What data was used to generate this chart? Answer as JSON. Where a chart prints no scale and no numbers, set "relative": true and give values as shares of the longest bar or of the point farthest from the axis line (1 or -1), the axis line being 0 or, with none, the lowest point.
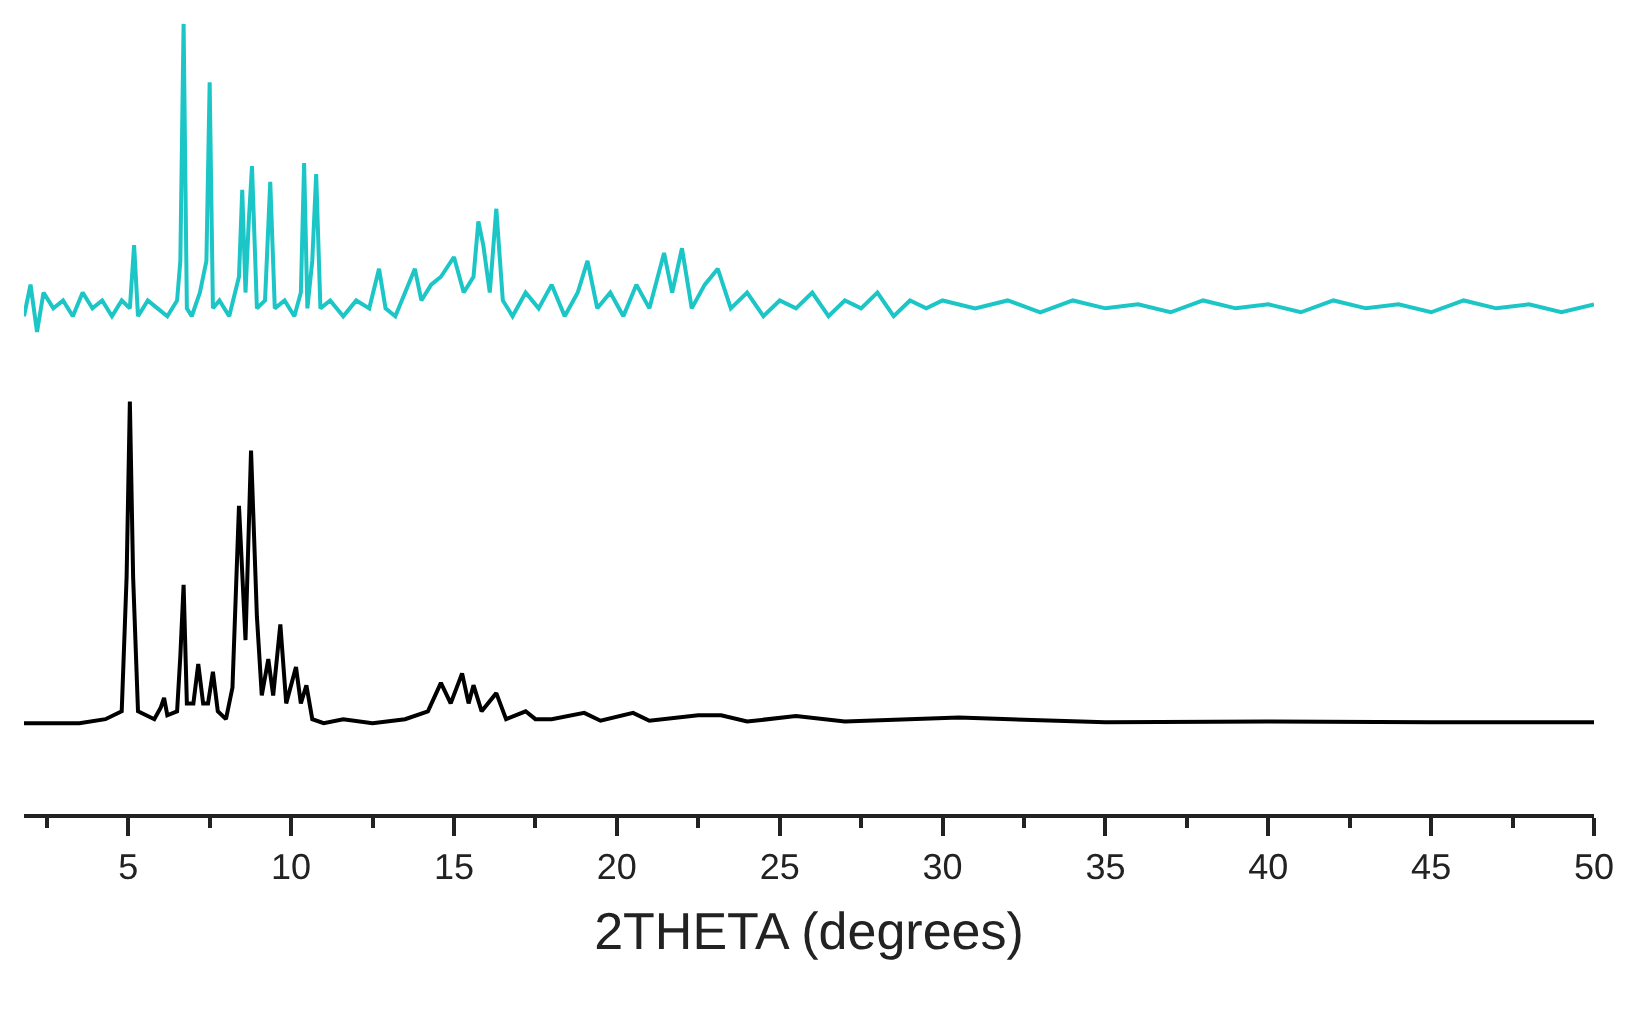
{
  "chart_data": {
    "type": "line",
    "relative": true,
    "xlabel": "2THETA (degrees)",
    "xlim": [
      1.8,
      50
    ],
    "xticks": [
      {
        "value": 2.5,
        "label": null
      },
      5,
      {
        "value": 7.5,
        "label": null
      },
      10,
      {
        "value": 12.5,
        "label": null
      },
      15,
      {
        "value": 17.5,
        "label": null
      },
      20,
      {
        "value": 22.5,
        "label": null
      },
      25,
      {
        "value": 27.5,
        "label": null
      },
      30,
      {
        "value": 32.5,
        "label": null
      },
      35,
      {
        "value": 37.5,
        "label": null
      },
      40,
      {
        "value": 42.5,
        "label": null
      },
      45,
      {
        "value": 47.5,
        "label": null
      },
      50
    ],
    "marker": "none",
    "line_style": "solid",
    "tick_labels": "x",
    "series": [
      {
        "color": "#1cc6c6",
        "x": [
          1.8,
          2.0,
          2.2,
          2.4,
          2.7,
          3.0,
          3.3,
          3.6,
          3.9,
          4.2,
          4.5,
          4.8,
          5.05,
          5.18,
          5.3,
          5.6,
          5.9,
          6.2,
          6.5,
          6.6,
          6.7,
          6.8,
          6.95,
          7.2,
          7.4,
          7.5,
          7.6,
          7.8,
          8.1,
          8.4,
          8.5,
          8.6,
          8.7,
          8.8,
          8.95,
          9.2,
          9.36,
          9.5,
          9.8,
          10.1,
          10.3,
          10.4,
          10.5,
          10.65,
          10.77,
          10.9,
          11.2,
          11.6,
          12.0,
          12.4,
          12.7,
          12.9,
          13.2,
          13.5,
          13.8,
          14.0,
          14.3,
          14.6,
          15.0,
          15.3,
          15.6,
          15.75,
          15.9,
          16.1,
          16.3,
          16.5,
          16.8,
          17.2,
          17.6,
          18.0,
          18.4,
          18.8,
          19.1,
          19.4,
          19.8,
          20.2,
          20.6,
          21.0,
          21.45,
          21.7,
          22.0,
          22.3,
          22.7,
          23.1,
          23.5,
          24.0,
          24.5,
          25.0,
          25.5,
          26.0,
          26.5,
          27.0,
          27.5,
          28.0,
          28.5,
          29.0,
          29.5,
          30.0,
          31.0,
          32.0,
          33.0,
          34.0,
          35.0,
          36.0,
          37.0,
          38.0,
          39.0,
          40.0,
          41.0,
          42.0,
          43.0,
          44.0,
          45.0,
          46.0,
          47.0,
          48.0,
          49.0,
          50.0
        ],
        "values": [
          0.63,
          0.67,
          0.61,
          0.66,
          0.64,
          0.65,
          0.63,
          0.66,
          0.64,
          0.65,
          0.63,
          0.65,
          0.64,
          0.72,
          0.63,
          0.65,
          0.64,
          0.63,
          0.65,
          0.7,
          1.0,
          0.64,
          0.63,
          0.66,
          0.7,
          0.926,
          0.64,
          0.65,
          0.63,
          0.68,
          0.79,
          0.66,
          0.75,
          0.82,
          0.64,
          0.65,
          0.8,
          0.64,
          0.65,
          0.63,
          0.66,
          0.824,
          0.64,
          0.7,
          0.81,
          0.64,
          0.65,
          0.63,
          0.65,
          0.64,
          0.69,
          0.64,
          0.63,
          0.66,
          0.69,
          0.65,
          0.67,
          0.68,
          0.705,
          0.66,
          0.68,
          0.75,
          0.72,
          0.66,
          0.766,
          0.65,
          0.63,
          0.66,
          0.64,
          0.67,
          0.63,
          0.66,
          0.7,
          0.64,
          0.66,
          0.63,
          0.67,
          0.64,
          0.71,
          0.66,
          0.716,
          0.64,
          0.67,
          0.69,
          0.64,
          0.66,
          0.63,
          0.65,
          0.64,
          0.66,
          0.63,
          0.65,
          0.64,
          0.66,
          0.63,
          0.65,
          0.64,
          0.65,
          0.64,
          0.65,
          0.635,
          0.65,
          0.64,
          0.645,
          0.635,
          0.65,
          0.64,
          0.645,
          0.635,
          0.65,
          0.64,
          0.645,
          0.635,
          0.65,
          0.64,
          0.645,
          0.635,
          0.645
        ]
      },
      {
        "color": "#000000",
        "x": [
          1.8,
          3.5,
          4.3,
          4.8,
          4.95,
          5.05,
          5.15,
          5.3,
          5.8,
          6.0,
          6.1,
          6.2,
          6.5,
          6.6,
          6.7,
          6.8,
          7.0,
          7.15,
          7.3,
          7.45,
          7.6,
          7.75,
          8.0,
          8.2,
          8.4,
          8.6,
          8.77,
          8.95,
          9.1,
          9.3,
          9.45,
          9.67,
          9.85,
          10.15,
          10.3,
          10.47,
          10.65,
          11.0,
          11.6,
          12.5,
          13.5,
          14.2,
          14.6,
          14.9,
          15.25,
          15.45,
          15.6,
          15.85,
          16.3,
          16.6,
          17.2,
          17.5,
          18.0,
          19.0,
          19.5,
          20.5,
          21.0,
          22.5,
          23.2,
          24.0,
          25.5,
          27.0,
          30.5,
          35.0,
          40.0,
          45.0,
          50.0
        ],
        "values": [
          0.115,
          0.115,
          0.12,
          0.13,
          0.3,
          0.522,
          0.3,
          0.13,
          0.12,
          0.135,
          0.147,
          0.125,
          0.13,
          0.2,
          0.29,
          0.14,
          0.14,
          0.19,
          0.14,
          0.14,
          0.18,
          0.13,
          0.12,
          0.16,
          0.39,
          0.22,
          0.46,
          0.25,
          0.15,
          0.196,
          0.15,
          0.24,
          0.14,
          0.186,
          0.14,
          0.163,
          0.12,
          0.115,
          0.12,
          0.115,
          0.12,
          0.13,
          0.166,
          0.14,
          0.178,
          0.14,
          0.163,
          0.13,
          0.153,
          0.12,
          0.13,
          0.12,
          0.12,
          0.128,
          0.118,
          0.128,
          0.118,
          0.125,
          0.125,
          0.117,
          0.124,
          0.117,
          0.122,
          0.116,
          0.117,
          0.116,
          0.116
        ]
      }
    ]
  }
}
